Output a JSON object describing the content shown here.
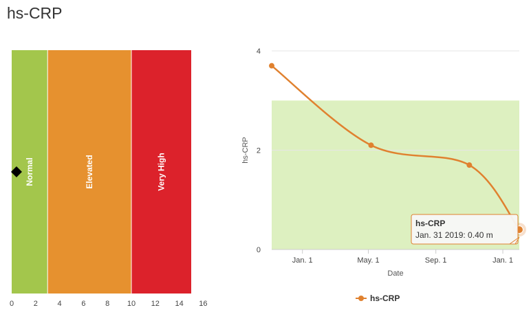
{
  "page": {
    "title": "hs-CRP"
  },
  "colors": {
    "normal": "#a3c64c",
    "elevated": "#e6912f",
    "very_high": "#dc222b",
    "line": "#e0812f",
    "target_band": "#ddf0c0",
    "marker": "#000000"
  },
  "chart_data": [
    {
      "type": "bar",
      "orientation": "horizontal-bands",
      "bands": [
        {
          "label": "Normal",
          "from": 0,
          "to": 3,
          "color": "#a3c64c"
        },
        {
          "label": "Elevated",
          "from": 3,
          "to": 10,
          "color": "#e6912f"
        },
        {
          "label": "Very High",
          "from": 10,
          "to": 15,
          "color": "#dc222b"
        }
      ],
      "marker": {
        "value": 0.4,
        "shape": "diamond"
      },
      "xlim": [
        0,
        15
      ],
      "xticks": [
        0,
        2,
        4,
        6,
        8,
        10,
        12,
        14,
        16
      ]
    },
    {
      "type": "line",
      "xlabel": "Date",
      "ylabel": "hs-CRP",
      "ylim": [
        0,
        4
      ],
      "yticks": [
        0,
        2,
        4
      ],
      "xlim": [
        "2017-11-06",
        "2019-01-31"
      ],
      "xticks": [
        {
          "label": "Jan. 1",
          "date": "2018-01-01"
        },
        {
          "label": "May. 1",
          "date": "2018-05-01"
        },
        {
          "label": "Sep. 1",
          "date": "2018-09-01"
        },
        {
          "label": "Jan. 1",
          "date": "2019-01-01"
        }
      ],
      "target_range": [
        0,
        3
      ],
      "series": [
        {
          "name": "hs-CRP",
          "color": "#e0812f",
          "points": [
            {
              "x": "2017-11-06",
              "y": 3.7
            },
            {
              "x": "2018-05-06",
              "y": 2.1
            },
            {
              "x": "2018-11-01",
              "y": 1.7
            },
            {
              "x": "2019-01-31",
              "y": 0.4
            }
          ]
        }
      ],
      "tooltip": {
        "title": "hs-CRP",
        "text": "Jan. 31 2019: 0.40 m"
      },
      "legend": {
        "position": "bottom-center"
      },
      "grid": true
    }
  ]
}
